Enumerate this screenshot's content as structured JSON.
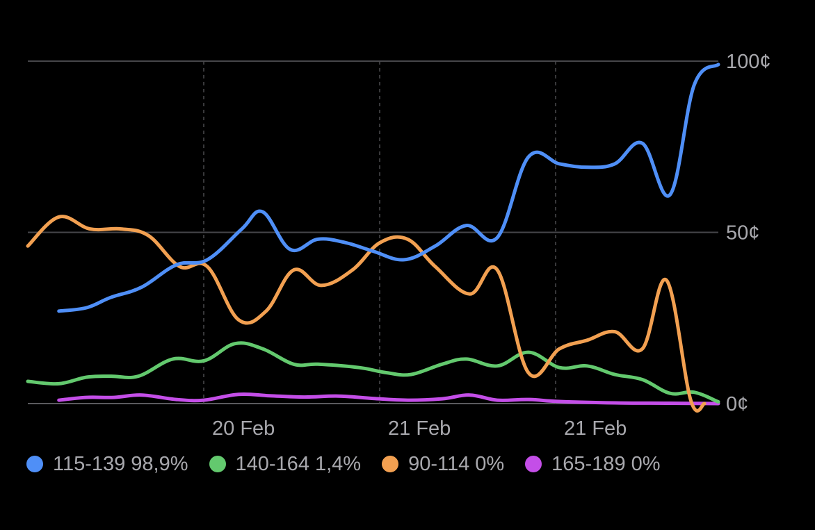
{
  "chart_data": {
    "type": "line",
    "x_labels": [
      "20 Feb",
      "21 Feb",
      "21 Feb"
    ],
    "y_ticks": [
      {
        "value": 100,
        "label": "100¢"
      },
      {
        "value": 50,
        "label": "50¢"
      },
      {
        "value": 0,
        "label": "0¢"
      }
    ],
    "ylim": [
      0,
      100
    ],
    "xlim": [
      0,
      100
    ],
    "grid": "horizontal solid at y ticks, vertical dashed at x labels",
    "legend_position": "bottom",
    "series": [
      {
        "name": "115-139",
        "value_label": "98,9%",
        "color": "#4f8ff7",
        "points": [
          [
            4.5,
            27
          ],
          [
            8.5,
            28
          ],
          [
            12,
            31
          ],
          [
            16.5,
            34
          ],
          [
            21.5,
            40.5
          ],
          [
            26,
            42
          ],
          [
            31,
            51
          ],
          [
            34,
            56
          ],
          [
            38,
            45
          ],
          [
            42,
            48
          ],
          [
            46,
            47
          ],
          [
            50,
            44.5
          ],
          [
            54.5,
            42
          ],
          [
            59,
            46
          ],
          [
            63.5,
            52
          ],
          [
            68,
            48.5
          ],
          [
            72.5,
            72
          ],
          [
            77,
            70
          ],
          [
            81,
            69
          ],
          [
            85,
            70
          ],
          [
            89,
            76
          ],
          [
            93,
            61
          ],
          [
            96.5,
            93
          ],
          [
            100,
            99
          ]
        ]
      },
      {
        "name": "140-164",
        "value_label": "1,4%",
        "color": "#63c96e",
        "points": [
          [
            0,
            6.5
          ],
          [
            4.5,
            5.8
          ],
          [
            8.5,
            7.7
          ],
          [
            12,
            8
          ],
          [
            16,
            8
          ],
          [
            21,
            13
          ],
          [
            25.5,
            12.5
          ],
          [
            30,
            17.5
          ],
          [
            34,
            16
          ],
          [
            38.5,
            11.5
          ],
          [
            42,
            11.5
          ],
          [
            48,
            10.5
          ],
          [
            52,
            9
          ],
          [
            55.5,
            8.5
          ],
          [
            60,
            11.5
          ],
          [
            63.5,
            13
          ],
          [
            68,
            11
          ],
          [
            72.5,
            15
          ],
          [
            77,
            10.5
          ],
          [
            81,
            11
          ],
          [
            85,
            8.5
          ],
          [
            89,
            7
          ],
          [
            93,
            3
          ],
          [
            96.5,
            3.3
          ],
          [
            100,
            0.5
          ]
        ]
      },
      {
        "name": "90-114",
        "value_label": "0%",
        "color": "#f2a051",
        "points": [
          [
            0,
            46
          ],
          [
            4.5,
            54.5
          ],
          [
            9,
            51
          ],
          [
            13.5,
            51
          ],
          [
            17.5,
            49
          ],
          [
            22,
            40
          ],
          [
            26,
            40
          ],
          [
            30.5,
            24.5
          ],
          [
            34.5,
            27
          ],
          [
            38.5,
            39
          ],
          [
            42.5,
            34.5
          ],
          [
            47,
            39
          ],
          [
            51,
            47
          ],
          [
            55,
            48
          ],
          [
            59,
            40
          ],
          [
            64,
            32
          ],
          [
            68,
            39
          ],
          [
            72.5,
            9
          ],
          [
            77,
            16
          ],
          [
            81,
            18.5
          ],
          [
            85,
            21
          ],
          [
            89,
            16
          ],
          [
            92.5,
            36
          ],
          [
            96,
            1
          ],
          [
            98,
            0
          ]
        ]
      },
      {
        "name": "165-189",
        "value_label": "0%",
        "color": "#c44ee8",
        "points": [
          [
            4.5,
            1
          ],
          [
            8.5,
            1.8
          ],
          [
            12.5,
            1.8
          ],
          [
            16.5,
            2.5
          ],
          [
            21.5,
            1.2
          ],
          [
            25.5,
            1
          ],
          [
            30.5,
            2.7
          ],
          [
            35,
            2.3
          ],
          [
            40,
            1.9
          ],
          [
            45,
            2.2
          ],
          [
            50,
            1.5
          ],
          [
            55,
            1
          ],
          [
            60,
            1.4
          ],
          [
            64,
            2.5
          ],
          [
            68,
            1
          ],
          [
            72.5,
            1.2
          ],
          [
            77,
            0.6
          ],
          [
            85,
            0.2
          ],
          [
            93,
            0.1
          ],
          [
            100,
            0
          ]
        ]
      }
    ]
  }
}
